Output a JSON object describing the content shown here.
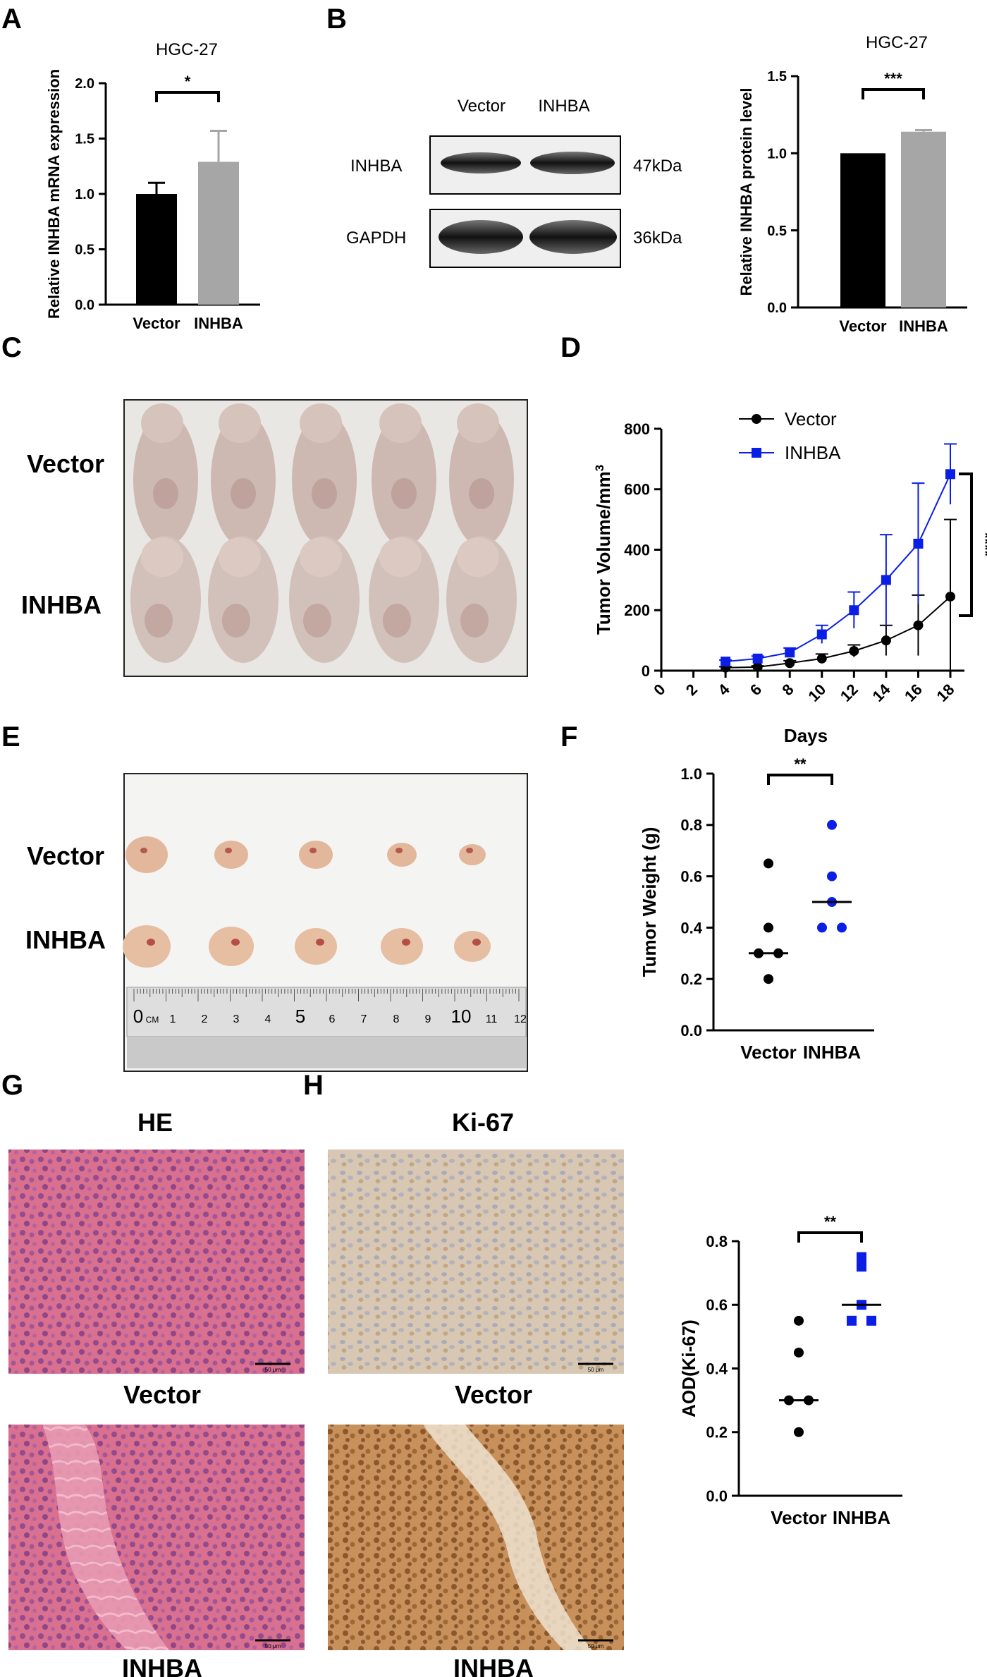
{
  "panels": {
    "A": {
      "letter": "A"
    },
    "B": {
      "letter": "B"
    },
    "C": {
      "letter": "C"
    },
    "D": {
      "letter": "D"
    },
    "E": {
      "letter": "E"
    },
    "F": {
      "letter": "F"
    },
    "G": {
      "letter": "G"
    },
    "H": {
      "letter": "H"
    }
  },
  "western_blot": {
    "lane_labels": [
      "Vector",
      "INHBA"
    ],
    "rows": [
      {
        "protein": "INHBA",
        "size": "47kDa"
      },
      {
        "protein": "GAPDH",
        "size": "36kDa"
      }
    ]
  },
  "photos": {
    "mice_labels": [
      "Vector",
      "INHBA"
    ],
    "tumor_labels": [
      "Vector",
      "INHBA"
    ],
    "ruler_ticks": [
      "0",
      "CM",
      "1",
      "2",
      "3",
      "4",
      "5",
      "6",
      "7",
      "8",
      "9",
      "10",
      "11",
      "12"
    ],
    "he_title": "HE",
    "ki67_title": "Ki-67",
    "he_row_labels": [
      "Vector",
      "INHBA"
    ],
    "ki67_row_labels": [
      "Vector",
      "INHBA"
    ],
    "scale_bar": "50 μm"
  },
  "chart_data": [
    {
      "panel": "A",
      "type": "bar",
      "title": "HGC-27",
      "ylabel": "Relative INHBA mRNA expression",
      "categories": [
        "Vector",
        "INHBA"
      ],
      "values": [
        1.0,
        1.29
      ],
      "errors": [
        0.1,
        0.28
      ],
      "colors": [
        "#000000",
        "#a6a6a6"
      ],
      "ylim": [
        0,
        2.0
      ],
      "yticks": [
        "0.0",
        "0.5",
        "1.0",
        "1.5",
        "2.0"
      ],
      "significance": "*"
    },
    {
      "panel": "B",
      "type": "bar",
      "title": "HGC-27",
      "ylabel": "Relative INHBA protein level",
      "categories": [
        "Vector",
        "INHBA"
      ],
      "values": [
        1.0,
        1.14
      ],
      "errors": [
        0,
        0.01
      ],
      "colors": [
        "#000000",
        "#a6a6a6"
      ],
      "ylim": [
        0,
        1.5
      ],
      "yticks": [
        "0.0",
        "0.5",
        "1.0",
        "1.5"
      ],
      "significance": "***"
    },
    {
      "panel": "D",
      "type": "line",
      "xlabel": "Days",
      "ylabel": "Tumor Volume/mm3",
      "xlim": [
        0,
        18
      ],
      "ylim": [
        0,
        800
      ],
      "xticks": [
        "0",
        "2",
        "4",
        "6",
        "8",
        "10",
        "12",
        "14",
        "16",
        "18"
      ],
      "yticks": [
        "0",
        "200",
        "400",
        "600",
        "800"
      ],
      "x": [
        4,
        6,
        8,
        10,
        12,
        14,
        16,
        18
      ],
      "series": [
        {
          "name": "Vector",
          "color": "#000000",
          "marker": "circle",
          "values": [
            10,
            12,
            25,
            40,
            65,
            100,
            150,
            245
          ],
          "errors": [
            3,
            4,
            8,
            15,
            20,
            50,
            100,
            255
          ]
        },
        {
          "name": "INHBA",
          "color": "#0a1ee6",
          "marker": "square",
          "values": [
            30,
            40,
            60,
            120,
            200,
            300,
            420,
            650
          ],
          "errors": [
            5,
            8,
            15,
            30,
            60,
            150,
            200,
            100
          ]
        }
      ],
      "legend": "top-left",
      "significance": "****"
    },
    {
      "panel": "F",
      "type": "scatter",
      "ylabel": "Tumor Weight (g)",
      "categories": [
        "Vector",
        "INHBA"
      ],
      "ylim": [
        0,
        1.0
      ],
      "yticks": [
        "0.0",
        "0.2",
        "0.4",
        "0.6",
        "0.8",
        "1.0"
      ],
      "series": [
        {
          "name": "Vector",
          "color": "#000000",
          "marker": "circle",
          "values": [
            0.65,
            0.4,
            0.3,
            0.3,
            0.2
          ],
          "median": 0.3
        },
        {
          "name": "INHBA",
          "color": "#0a1ee6",
          "marker": "circle",
          "values": [
            0.8,
            0.6,
            0.5,
            0.4,
            0.4
          ],
          "median": 0.5
        }
      ],
      "significance": "**"
    },
    {
      "panel": "H",
      "type": "scatter",
      "ylabel": "AOD(Ki-67)",
      "categories": [
        "Vector",
        "INHBA"
      ],
      "ylim": [
        0,
        0.8
      ],
      "yticks": [
        "0.0",
        "0.2",
        "0.4",
        "0.6",
        "0.8"
      ],
      "series": [
        {
          "name": "Vector",
          "color": "#000000",
          "marker": "circle",
          "values": [
            0.55,
            0.45,
            0.3,
            0.3,
            0.2
          ],
          "median": 0.3
        },
        {
          "name": "INHBA",
          "color": "#0a1ee6",
          "marker": "square",
          "values": [
            0.75,
            0.72,
            0.6,
            0.55,
            0.55
          ],
          "median": 0.6
        }
      ],
      "significance": "**"
    }
  ]
}
